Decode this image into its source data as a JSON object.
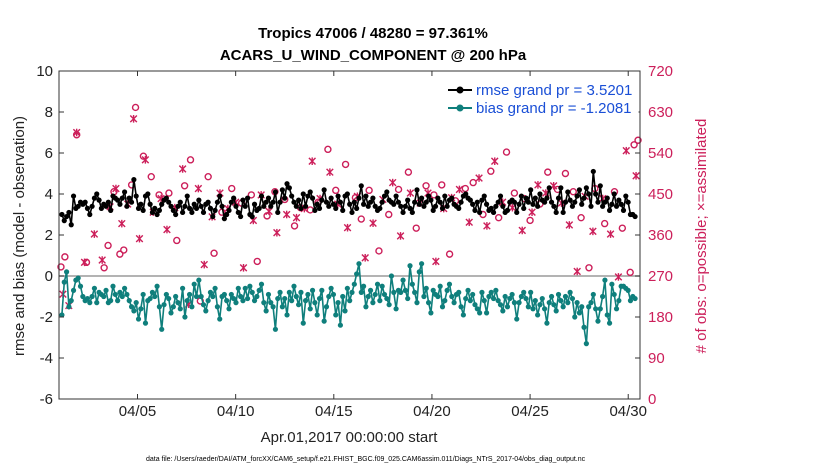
{
  "chart_data": {
    "type": "line",
    "title_line1": "Tropics 47006 / 48280 = 97.361%",
    "title_line2": "ACARS_U_WIND_COMPONENT @ 200 hPa",
    "xlabel": "Apr.01,2017 00:00:00 start",
    "ylabel": "rmse and bias (model - observation)",
    "y2label": "# of obs: o=possible; ×=assimilated",
    "xlim": [
      1,
      30.6
    ],
    "ylim": [
      -6,
      10
    ],
    "y2lim": [
      0,
      720
    ],
    "x_ticks": [
      {
        "x": 5,
        "label": "04/05"
      },
      {
        "x": 10,
        "label": "04/10"
      },
      {
        "x": 15,
        "label": "04/15"
      },
      {
        "x": 20,
        "label": "04/20"
      },
      {
        "x": 25,
        "label": "04/25"
      },
      {
        "x": 30,
        "label": "04/30"
      }
    ],
    "y_ticks": [
      -6,
      -4,
      -2,
      0,
      2,
      4,
      6,
      8,
      10
    ],
    "y2_ticks": [
      0,
      90,
      180,
      270,
      360,
      450,
      540,
      630,
      720
    ],
    "zero_line": 0,
    "colors": {
      "rmse": "#000000",
      "bias": "#0f7f7c",
      "counts": "#cc1f5a",
      "zero_line": "#9a9a9a",
      "legend_text": "#1a4fd6"
    },
    "series": [
      {
        "name": "rmse grand pr = 3.5201",
        "marker": "circle",
        "values": [
          3.0,
          2.7,
          2.9,
          3.1,
          2.5,
          3.9,
          3.3,
          3.4,
          3.6,
          3.5,
          3.6,
          3.3,
          3.0,
          3.4,
          3.8,
          4.0,
          3.7,
          3.3,
          3.5,
          3.4,
          3.6,
          3.2,
          3.9,
          3.8,
          3.7,
          3.5,
          3.8,
          4.1,
          3.4,
          3.8,
          3.6,
          4.7,
          3.9,
          3.3,
          3.5,
          3.2,
          3.9,
          4.0,
          3.5,
          3.1,
          3.3,
          3.0,
          3.2,
          3.5,
          3.7,
          3.8,
          3.6,
          3.4,
          3.2,
          3.0,
          3.4,
          3.6,
          3.1,
          3.4,
          3.9,
          3.3,
          3.1,
          3.5,
          3.3,
          3.7,
          3.4,
          3.1,
          3.5,
          3.6,
          3.3,
          2.9,
          3.2,
          3.6,
          3.9,
          3.4,
          2.8,
          3.0,
          3.2,
          3.6,
          3.8,
          3.4,
          3.1,
          2.9,
          3.7,
          3.4,
          3.8,
          3.0,
          2.9,
          3.5,
          3.2,
          3.3,
          3.9,
          3.4,
          3.6,
          3.8,
          3.4,
          3.6,
          4.1,
          3.1,
          3.6,
          4.2,
          3.8,
          4.5,
          4.3,
          3.9,
          3.6,
          3.4,
          3.7,
          3.3,
          4.0,
          3.4,
          3.9,
          4.1,
          3.8,
          3.2,
          3.5,
          3.3,
          3.7,
          4.2,
          3.6,
          3.4,
          3.8,
          3.5,
          3.3,
          3.9,
          3.6,
          3.2,
          3.9,
          4.0,
          3.5,
          3.1,
          3.6,
          3.3,
          3.8,
          4.4,
          3.5,
          3.9,
          3.4,
          3.6,
          3.8,
          3.4,
          3.2,
          3.3,
          3.6,
          3.9,
          4.1,
          3.7,
          3.6,
          3.5,
          3.9,
          3.6,
          3.4,
          3.1,
          3.4,
          3.7,
          3.3,
          3.1,
          3.6,
          4.2,
          3.5,
          3.8,
          3.4,
          3.6,
          3.9,
          3.7,
          3.2,
          3.4,
          3.8,
          3.6,
          3.3,
          3.9,
          3.4,
          3.7,
          3.8,
          3.5,
          3.4,
          3.3,
          3.6,
          3.9,
          4.0,
          3.8,
          3.7,
          3.5,
          3.2,
          3.6,
          3.1,
          3.7,
          3.9,
          3.5,
          3.2,
          3.3,
          3.1,
          3.4,
          3.6,
          3.9,
          3.4,
          3.1,
          3.2,
          3.6,
          3.7,
          3.6,
          3.1,
          3.5,
          3.9,
          3.3,
          3.8,
          3.6,
          4.2,
          3.5,
          3.8,
          3.4,
          4.0,
          3.7,
          3.6,
          3.8,
          4.3,
          3.6,
          3.4,
          3.1,
          3.8,
          4.3,
          3.1,
          3.6,
          4.1,
          3.7,
          3.4,
          3.6,
          3.9,
          4.2,
          3.5,
          3.8,
          4.3,
          4.0,
          3.4,
          5.1,
          4.0,
          3.6,
          4.4,
          3.4,
          3.6,
          3.8,
          3.2,
          3.5,
          4.0,
          3.4,
          3.7,
          3.5,
          3.2,
          3.9,
          3.6,
          3.0,
          3.0,
          2.9
        ]
      },
      {
        "name": "bias grand pr = -1.2081",
        "marker": "circle",
        "values": [
          -1.9,
          -0.3,
          0.2,
          -1.5,
          -1.2,
          -0.7,
          -0.2,
          -0.1,
          -0.5,
          -1.0,
          -1.2,
          -1.1,
          -1.3,
          -1.0,
          -0.6,
          -1.3,
          -0.8,
          -0.9,
          -1.0,
          -0.7,
          -1.3,
          -1.2,
          -0.5,
          -0.9,
          -1.2,
          -0.8,
          -1.0,
          -0.6,
          -0.9,
          -1.2,
          -1.5,
          -1.7,
          -1.3,
          -2.1,
          -1.6,
          -0.9,
          -2.3,
          -1.2,
          -1.1,
          -0.8,
          -1.0,
          -0.5,
          -1.5,
          -2.6,
          -1.4,
          -0.9,
          -1.1,
          -1.8,
          -1.5,
          -1.0,
          -1.3,
          -1.6,
          -0.6,
          -2.0,
          -1.2,
          -0.9,
          -1.5,
          -0.4,
          -1.0,
          -0.2,
          -1.0,
          -1.4,
          -1.7,
          -1.2,
          -0.8,
          -1.0,
          -0.6,
          -1.5,
          -2.1,
          -1.0,
          -0.9,
          -1.2,
          -1.6,
          -0.9,
          -1.1,
          -1.3,
          -0.6,
          -1.0,
          -1.2,
          -0.6,
          -1.1,
          -0.5,
          -0.8,
          -1.2,
          -1.0,
          -0.7,
          -0.4,
          -1.3,
          -1.7,
          -0.9,
          -1.3,
          -1.5,
          -2.6,
          -1.1,
          -0.8,
          -1.5,
          -1.1,
          -1.9,
          -0.8,
          -1.2,
          -0.5,
          -1.0,
          -1.4,
          -0.8,
          -2.3,
          -1.2,
          -0.9,
          -1.6,
          -0.7,
          -1.3,
          -1.9,
          -1.1,
          -0.7,
          -2.2,
          -1.5,
          -1.0,
          -0.6,
          -0.9,
          -1.9,
          -1.3,
          -2.4,
          -1.0,
          -1.7,
          -0.6,
          -1.2,
          -0.8,
          -0.4,
          0.1,
          0.6,
          -0.8,
          -0.5,
          -1.5,
          -1.0,
          -0.7,
          -1.3,
          -0.9,
          -0.4,
          -1.2,
          -0.5,
          -0.9,
          -1.1,
          -1.4,
          0.0,
          -0.8,
          -1.6,
          -0.7,
          -0.8,
          -0.2,
          -0.7,
          -1.1,
          0.5,
          -0.4,
          -0.8,
          -1.3,
          0.2,
          0.6,
          -1.0,
          -0.6,
          -1.3,
          -1.8,
          -0.7,
          -0.9,
          -1.0,
          -0.5,
          -1.5,
          -1.2,
          -0.7,
          -0.4,
          -1.0,
          -1.3,
          -0.9,
          -0.8,
          -1.5,
          -1.9,
          -1.1,
          -0.7,
          -1.2,
          -0.9,
          -1.4,
          -1.6,
          -1.8,
          -0.8,
          -1.2,
          -1.8,
          -1.0,
          -0.8,
          -1.1,
          -0.7,
          -1.2,
          -1.4,
          -1.7,
          -1.0,
          -1.5,
          -1.1,
          -0.9,
          -1.3,
          -2.1,
          -1.3,
          -1.0,
          -0.8,
          -1.1,
          -1.5,
          -0.8,
          -1.6,
          -1.2,
          -1.9,
          -1.4,
          -1.1,
          -1.6,
          -2.3,
          -1.3,
          -1.0,
          -1.4,
          -1.7,
          -0.9,
          -1.2,
          -1.5,
          -1.0,
          -1.3,
          -0.8,
          -1.1,
          -2.0,
          -1.3,
          -1.8,
          -1.5,
          -2.5,
          -3.3,
          -1.5,
          -1.3,
          -0.9,
          -1.6,
          -2.2,
          -1.6,
          -1.0,
          -0.2,
          -1.9,
          -2.3,
          -0.4,
          -0.9,
          -1.6,
          -1.2,
          -0.5,
          -0.5,
          -0.6,
          -0.7,
          -1.2,
          -1.0,
          -1.1
        ]
      },
      {
        "name": "possible",
        "marker": "o",
        "axis": "right",
        "x": [
          1.1,
          1.3,
          1.9,
          2.4,
          3.3,
          3.5,
          3.8,
          4.1,
          4.3,
          4.7,
          4.9,
          5.3,
          5.7,
          6.1,
          6.6,
          7.0,
          7.4,
          7.7,
          8.2,
          8.6,
          8.9,
          9.3,
          9.8,
          10.3,
          10.8,
          11.1,
          11.6,
          12.0,
          12.5,
          13.0,
          13.3,
          13.8,
          14.2,
          14.7,
          15.1,
          15.6,
          16.1,
          16.4,
          16.8,
          17.3,
          17.8,
          18.3,
          18.8,
          19.2,
          19.7,
          20.1,
          20.5,
          20.9,
          21.2,
          21.7,
          22.1,
          22.6,
          23.0,
          23.4,
          23.8,
          24.2,
          24.7,
          25.0,
          25.5,
          25.9,
          26.4,
          26.8,
          27.2,
          27.6,
          28.0,
          28.3,
          28.8,
          29.3,
          29.7,
          30.1,
          30.3,
          30.5
        ],
        "values": [
          290,
          312,
          580,
          300,
          288,
          337,
          455,
          318,
          327,
          470,
          640,
          533,
          488,
          448,
          452,
          348,
          468,
          525,
          215,
          488,
          320,
          410,
          462,
          430,
          448,
          302,
          402,
          455,
          438,
          380,
          420,
          415,
          432,
          548,
          458,
          515,
          442,
          395,
          458,
          325,
          405,
          460,
          498,
          375,
          468,
          448,
          470,
          318,
          435,
          462,
          475,
          405,
          500,
          398,
          542,
          452,
          440,
          392,
          428,
          498,
          460,
          495,
          455,
          398,
          288,
          462,
          385,
          455,
          375,
          278,
          558,
          568
        ]
      },
      {
        "name": "assimilated",
        "marker": "x",
        "axis": "right",
        "x": [
          1.2,
          1.5,
          1.9,
          2.3,
          2.8,
          3.2,
          3.6,
          3.9,
          4.2,
          4.5,
          4.8,
          5.1,
          5.4,
          5.8,
          6.2,
          6.5,
          6.9,
          7.3,
          7.6,
          8.1,
          8.4,
          8.8,
          9.2,
          9.6,
          10.0,
          10.4,
          10.9,
          11.3,
          11.7,
          12.1,
          12.6,
          13.1,
          13.5,
          13.9,
          14.3,
          14.8,
          15.2,
          15.7,
          16.2,
          16.6,
          17.0,
          17.5,
          18.0,
          18.4,
          18.9,
          19.4,
          19.8,
          20.2,
          20.6,
          21.0,
          21.4,
          21.9,
          22.4,
          22.8,
          23.2,
          23.6,
          24.1,
          24.6,
          25.1,
          25.4,
          25.8,
          26.2,
          26.6,
          27.0,
          27.4,
          27.8,
          28.2,
          28.7,
          29.1,
          29.5,
          29.9,
          30.4
        ],
        "values": [
          230,
          205,
          585,
          300,
          362,
          305,
          422,
          462,
          385,
          428,
          615,
          352,
          525,
          410,
          440,
          372,
          420,
          505,
          208,
          462,
          295,
          400,
          452,
          418,
          432,
          288,
          392,
          448,
          412,
          365,
          405,
          398,
          418,
          522,
          440,
          498,
          428,
          376,
          445,
          310,
          386,
          438,
          475,
          358,
          452,
          430,
          452,
          302,
          418,
          442,
          460,
          388,
          485,
          380,
          522,
          432,
          420,
          370,
          410,
          470,
          452,
          468,
          430,
          382,
          280,
          445,
          368,
          440,
          362,
          268,
          545,
          490
        ]
      }
    ],
    "footnote": "data file: /Users/raeder/DAI/ATM_forcXX/CAM6_setup/f.e21.FHIST_BGC.f09_025.CAM6assim.011/Diags_NTrS_2017-04/obs_diag_output.nc"
  }
}
